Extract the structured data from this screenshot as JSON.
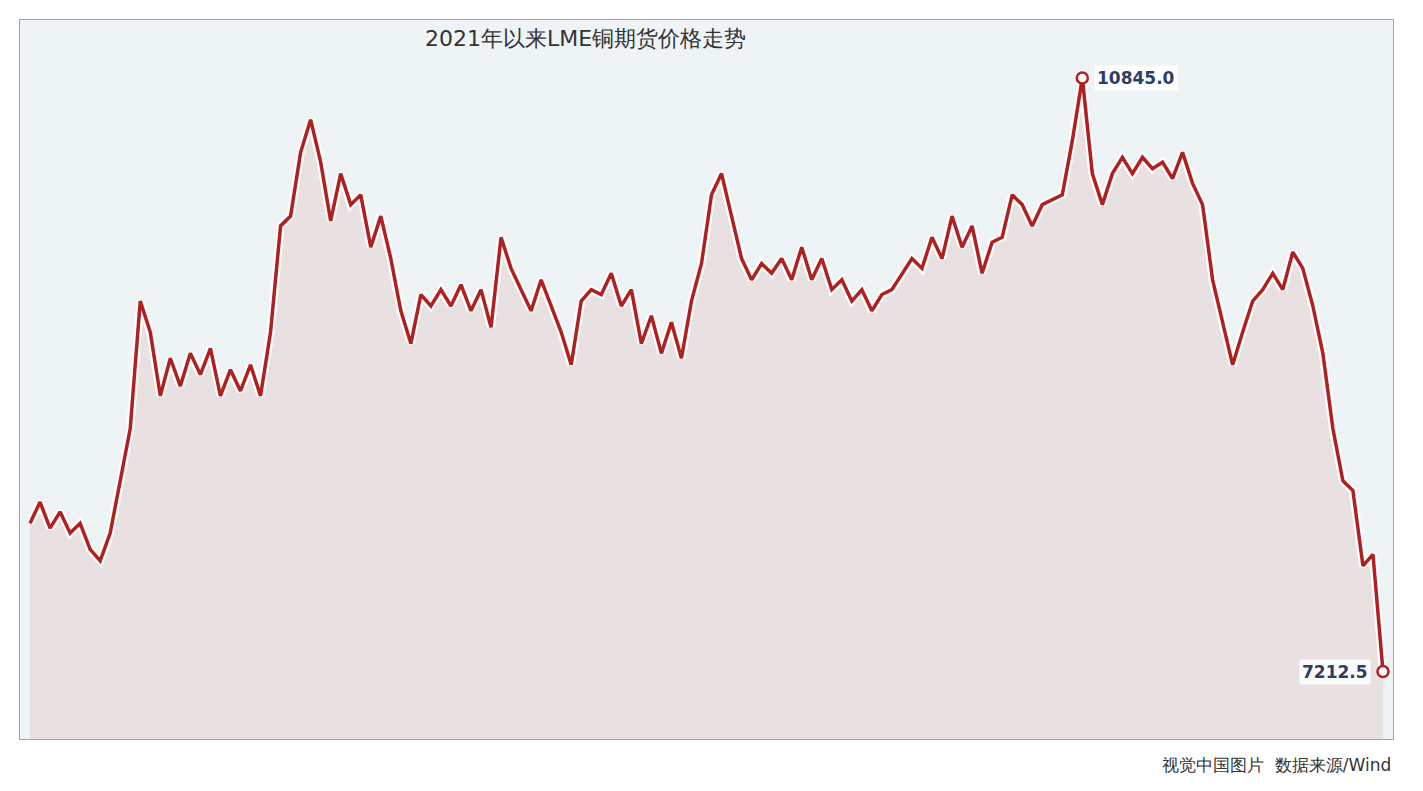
{
  "chart_data": {
    "type": "line",
    "title": "2021年以来LME铜期货价格走势",
    "source": "视觉中国图片  数据来源/Wind",
    "color": "#b0201e",
    "marker": "circle",
    "tick_labels": false,
    "grid": false,
    "ylim": [
      6800,
      11200
    ],
    "values": [
      8120,
      8250,
      8090,
      8190,
      8060,
      8120,
      7960,
      7890,
      8060,
      8380,
      8700,
      9480,
      9290,
      8900,
      9130,
      8960,
      9160,
      9030,
      9190,
      8900,
      9060,
      8930,
      9090,
      8900,
      9290,
      9940,
      10000,
      10390,
      10590,
      10330,
      9970,
      10260,
      10070,
      10130,
      9810,
      10000,
      9740,
      9420,
      9220,
      9520,
      9450,
      9550,
      9450,
      9580,
      9420,
      9550,
      9320,
      9870,
      9680,
      9550,
      9420,
      9610,
      9450,
      9290,
      9090,
      9480,
      9550,
      9520,
      9650,
      9450,
      9550,
      9220,
      9390,
      9160,
      9350,
      9130,
      9480,
      9710,
      10130,
      10260,
      10000,
      9740,
      9610,
      9710,
      9650,
      9740,
      9610,
      9810,
      9610,
      9740,
      9550,
      9610,
      9480,
      9550,
      9420,
      9520,
      9550,
      9650,
      9740,
      9680,
      9870,
      9740,
      10000,
      9810,
      9940,
      9650,
      9840,
      9870,
      10130,
      10070,
      9940,
      10070,
      10100,
      10130,
      10460,
      10845.0,
      10260,
      10070,
      10260,
      10360,
      10260,
      10360,
      10290,
      10330,
      10230,
      10390,
      10200,
      10070,
      9610,
      9350,
      9090,
      9290,
      9480,
      9550,
      9650,
      9550,
      9780,
      9680,
      9450,
      9160,
      8700,
      8380,
      8320,
      7860,
      7930,
      7212.5
    ],
    "annotations": [
      {
        "x": 105,
        "y": 10845.0,
        "text": "10845.0"
      },
      {
        "x": 135,
        "y": 7212.5,
        "text": "7212.5"
      }
    ]
  }
}
